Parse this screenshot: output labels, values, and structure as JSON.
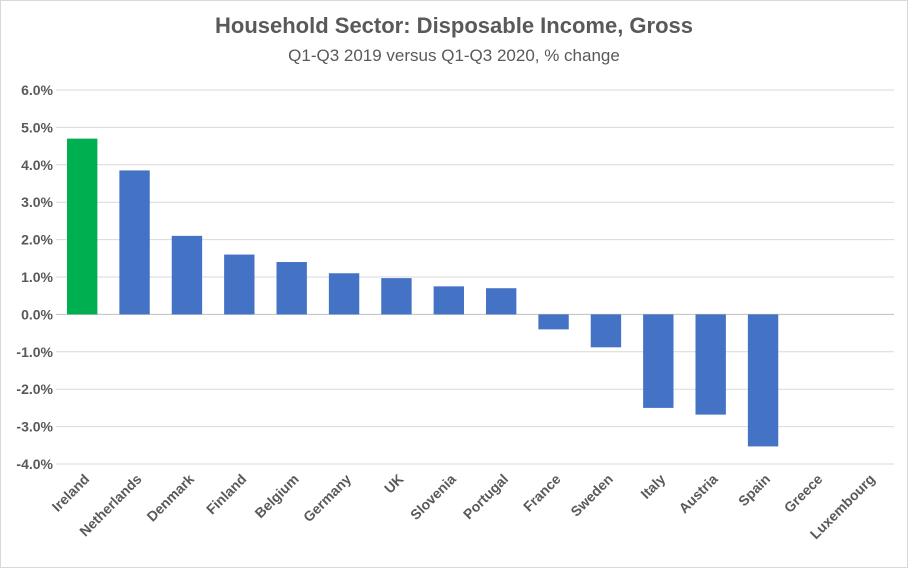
{
  "chart_data": {
    "type": "bar",
    "title": "Household Sector: Disposable Income, Gross",
    "subtitle": "Q1-Q3 2019 versus Q1-Q3 2020, % change",
    "categories": [
      "Ireland",
      "Netherlands",
      "Denmark",
      "Finland",
      "Belgium",
      "Germany",
      "UK",
      "Slovenia",
      "Portugal",
      "France",
      "Sweden",
      "Italy",
      "Austria",
      "Spain",
      "Greece",
      "Luxembourg"
    ],
    "values": [
      4.7,
      3.85,
      2.1,
      1.6,
      1.4,
      1.1,
      0.97,
      0.75,
      0.7,
      -0.4,
      -0.88,
      -2.5,
      -2.68,
      -3.53,
      null,
      null
    ],
    "highlight": {
      "category": "Ireland",
      "color": "#00b050"
    },
    "bar_color": "#4472c4",
    "ylim": [
      -4.0,
      6.0
    ],
    "yticks": [
      "6.0%",
      "5.0%",
      "4.0%",
      "3.0%",
      "2.0%",
      "1.0%",
      "0.0%",
      "-1.0%",
      "-2.0%",
      "-3.0%",
      "-4.0%"
    ],
    "ytick_values": [
      6,
      5,
      4,
      3,
      2,
      1,
      0,
      -1,
      -2,
      -3,
      -4
    ],
    "xlabel": "",
    "ylabel": "",
    "grid": true,
    "legend": "none"
  }
}
